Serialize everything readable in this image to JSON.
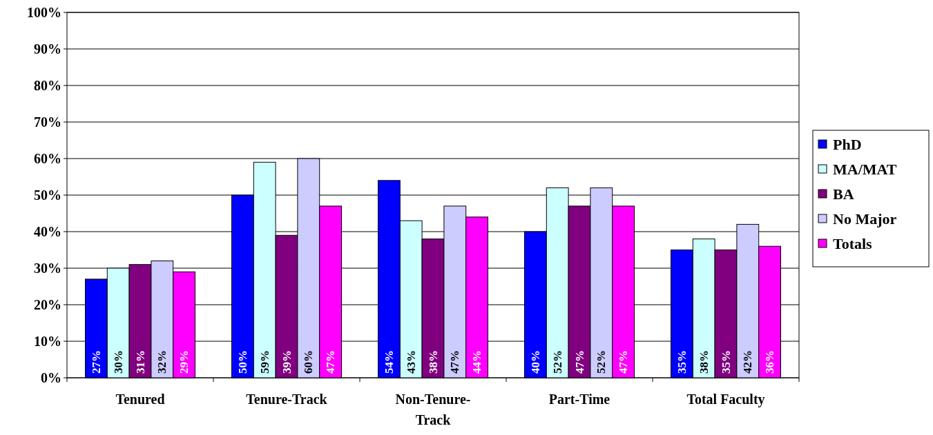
{
  "chart_data": {
    "type": "bar",
    "categories": [
      "Tenured",
      "Tenure-Track",
      "Non-Tenure-Track",
      "Part-Time",
      "Total Faculty"
    ],
    "series": [
      {
        "name": "PhD",
        "color": "#0000ff",
        "values": [
          27,
          50,
          54,
          40,
          35
        ],
        "value_labels": [
          "27%",
          "50%",
          "54%",
          "40%",
          "35%"
        ]
      },
      {
        "name": "MA/MAT",
        "color": "#ccffff",
        "values": [
          30,
          59,
          43,
          52,
          38
        ],
        "value_labels": [
          "30%",
          "59%",
          "43%",
          "52%",
          "38%"
        ]
      },
      {
        "name": "BA",
        "color": "#800080",
        "values": [
          31,
          39,
          38,
          47,
          35
        ],
        "value_labels": [
          "31%",
          "39%",
          "38%",
          "47%",
          "35%"
        ]
      },
      {
        "name": "No Major",
        "color": "#ccccff",
        "values": [
          32,
          60,
          47,
          52,
          42
        ],
        "value_labels": [
          "32%",
          "60%",
          "47%",
          "52%",
          "42%"
        ]
      },
      {
        "name": "Totals",
        "color": "#ff00ff",
        "values": [
          29,
          47,
          44,
          47,
          36
        ],
        "value_labels": [
          "29%",
          "47%",
          "44%",
          "47%",
          "36%"
        ]
      }
    ],
    "ylim": [
      0,
      100
    ],
    "yticks": [
      {
        "value": 0,
        "label": "0%"
      },
      {
        "value": 10,
        "label": "10%"
      },
      {
        "value": 20,
        "label": "20%"
      },
      {
        "value": 30,
        "label": "30%"
      },
      {
        "value": 40,
        "label": "40%"
      },
      {
        "value": 50,
        "label": "50%"
      },
      {
        "value": 60,
        "label": "60%"
      },
      {
        "value": 70,
        "label": "70%"
      },
      {
        "value": 80,
        "label": "80%"
      },
      {
        "value": 90,
        "label": "90%"
      },
      {
        "value": 100,
        "label": "100%"
      }
    ],
    "grid": "y",
    "legend": "right"
  }
}
